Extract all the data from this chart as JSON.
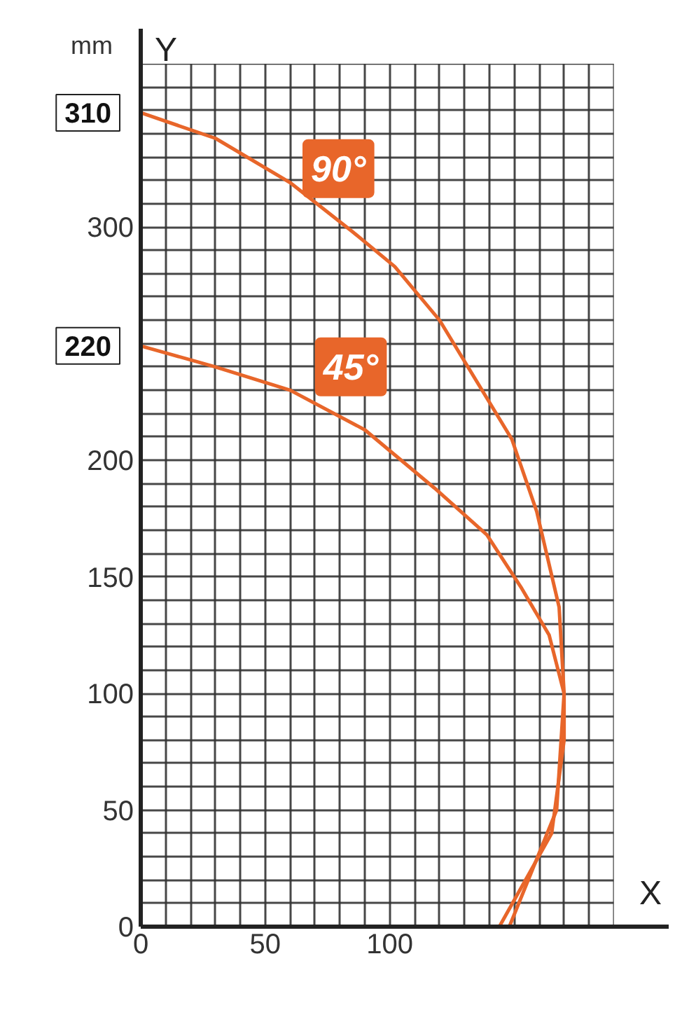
{
  "chart_data": {
    "type": "line",
    "xlabel": "X",
    "ylabel": "Y",
    "annotations": [
      "mm",
      "310",
      "220"
    ],
    "series": [
      {
        "name": "90°",
        "color": "#e8662a",
        "x": [
          0,
          30,
          60,
          85,
          102,
          120,
          149,
          159,
          168,
          170,
          170,
          165,
          144
        ],
        "values": [
          349,
          338,
          319,
          298,
          283,
          260,
          209,
          178,
          137,
          100,
          80,
          40,
          0
        ]
      },
      {
        "name": "45°",
        "color": "#e8662a",
        "x": [
          0,
          30,
          60,
          90,
          118,
          139,
          153,
          164,
          170,
          167,
          148
        ],
        "values": [
          249,
          240,
          230,
          213,
          188,
          168,
          145,
          125,
          100,
          50,
          0
        ]
      }
    ],
    "xlim": [
      0,
      212
    ],
    "ylim": [
      0,
      385
    ],
    "xticks": [
      0,
      {
        "value": 10,
        "label": null
      },
      {
        "value": 20,
        "label": null
      },
      {
        "value": 30,
        "label": null
      },
      {
        "value": 40,
        "label": null
      },
      50,
      {
        "value": 60,
        "label": null
      },
      {
        "value": 70,
        "label": null
      },
      {
        "value": 80,
        "label": null
      },
      {
        "value": 90,
        "label": null
      },
      100,
      {
        "value": 110,
        "label": null
      },
      {
        "value": 120,
        "label": null
      },
      {
        "value": 130,
        "label": null
      },
      {
        "value": 140,
        "label": null
      },
      {
        "value": 150,
        "label": null
      },
      {
        "value": 160,
        "label": null
      },
      {
        "value": 170,
        "label": null
      },
      {
        "value": 180,
        "label": null
      },
      {
        "value": 190,
        "label": null
      }
    ],
    "yticks": [
      0,
      {
        "value": 10,
        "label": null
      },
      {
        "value": 20,
        "label": null
      },
      {
        "value": 30,
        "label": null
      },
      {
        "value": 40,
        "label": null
      },
      50,
      {
        "value": 60,
        "label": null
      },
      {
        "value": 70,
        "label": null
      },
      {
        "value": 80,
        "label": null
      },
      {
        "value": 90,
        "label": null
      },
      100,
      {
        "value": 110,
        "label": null
      },
      {
        "value": 120,
        "label": null
      },
      {
        "value": 130,
        "label": null
      },
      {
        "value": 140,
        "label": null
      },
      150,
      {
        "value": 160,
        "label": null
      },
      {
        "value": 170,
        "label": null
      },
      {
        "value": 180,
        "label": null
      },
      {
        "value": 190,
        "label": null
      },
      200,
      {
        "value": 210,
        "label": null
      },
      {
        "value": 220,
        "label": null
      },
      {
        "value": 230,
        "label": null
      },
      {
        "value": 240,
        "label": null
      },
      {
        "value": 250,
        "label": null
      },
      {
        "value": 260,
        "label": null
      },
      {
        "value": 270,
        "label": null
      },
      {
        "value": 280,
        "label": null
      },
      {
        "value": 290,
        "label": null
      },
      300,
      {
        "value": 310,
        "label": null
      },
      {
        "value": 320,
        "label": null
      },
      {
        "value": 330,
        "label": null
      },
      {
        "value": 340,
        "label": null
      },
      {
        "value": 350,
        "label": null
      },
      {
        "value": 360,
        "label": null
      },
      {
        "value": 370,
        "label": null
      }
    ],
    "grid": true,
    "legend": false,
    "marker": "none",
    "line_style": "solid"
  }
}
